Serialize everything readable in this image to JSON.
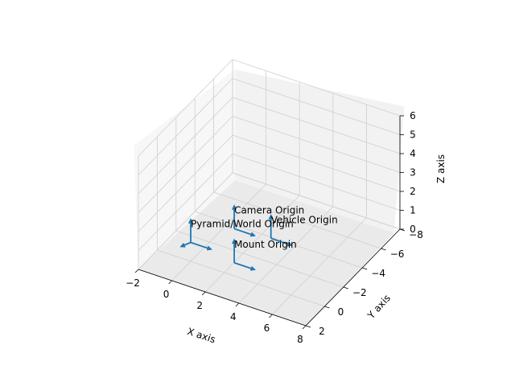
{
  "chart_data": {
    "type": "3d-quiver",
    "xlabel": "X axis",
    "ylabel": "Y axis",
    "zlabel": "Z axis",
    "xlim": [
      -2,
      8
    ],
    "ylim": [
      -8,
      2
    ],
    "zlim": [
      0,
      6
    ],
    "xticks": [
      "−2",
      "0",
      "2",
      "4",
      "6",
      "8"
    ],
    "yticks": [
      "−8",
      "−6",
      "−4",
      "−2",
      "0",
      "2"
    ],
    "zticks": [
      "0",
      "1",
      "2",
      "3",
      "4",
      "5",
      "6"
    ],
    "grid": true,
    "color": "#1f77b4",
    "frames": [
      {
        "name": "Camera Origin",
        "origin": [
          2.6,
          0.0,
          2.5
        ]
      },
      {
        "name": "Pyramid/World Origin",
        "origin": [
          0.0,
          0.0,
          1.0
        ]
      },
      {
        "name": "Mount Origin",
        "origin": [
          2.6,
          0.0,
          0.7
        ]
      },
      {
        "name": "Vehicle Origin",
        "origin": [
          2.6,
          -3.9,
          0.0
        ]
      }
    ]
  }
}
